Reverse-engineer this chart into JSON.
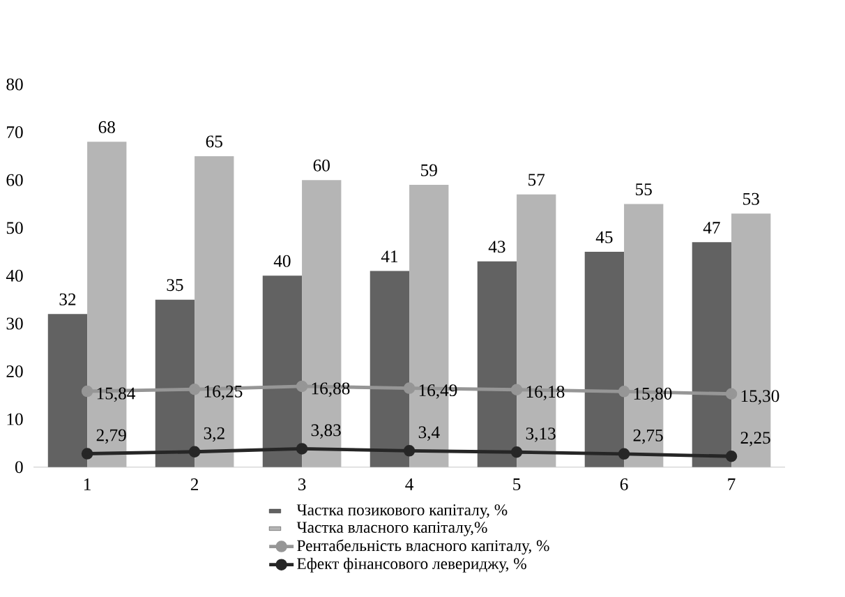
{
  "chart_data": {
    "type": "bar",
    "categories": [
      "1",
      "2",
      "3",
      "4",
      "5",
      "6",
      "7"
    ],
    "series": [
      {
        "name": "Частка позикового капіталу, %",
        "color": "#626262",
        "values": [
          32,
          35,
          40,
          41,
          43,
          45,
          47
        ],
        "value_labels": [
          "32",
          "35",
          "40",
          "41",
          "43",
          "45",
          "47"
        ]
      },
      {
        "name": "Частка власного капіталу,%",
        "color": "#b5b5b5",
        "values": [
          68,
          65,
          60,
          59,
          57,
          55,
          53
        ],
        "value_labels": [
          "68",
          "65",
          "60",
          "59",
          "57",
          "55",
          "53"
        ]
      },
      {
        "name": "Рентабельність власного капіталу, %",
        "type": "line",
        "color": "#969696",
        "values": [
          15.84,
          16.25,
          16.88,
          16.49,
          16.18,
          15.8,
          15.3
        ],
        "value_labels": [
          "15,84",
          "16,25",
          "16,88",
          "16,49",
          "16,18",
          "15,80",
          "15,30"
        ]
      },
      {
        "name": "Ефект фінансового левериджу, %",
        "type": "line",
        "color": "#262626",
        "values": [
          2.79,
          3.2,
          3.83,
          3.4,
          3.13,
          2.75,
          2.25
        ],
        "value_labels": [
          "2,79",
          "3,2",
          "3,83",
          "3,4",
          "3,13",
          "2,75",
          "2,25"
        ]
      }
    ],
    "ylim": [
      0,
      80
    ],
    "yticks": [
      0,
      10,
      20,
      30,
      40,
      50,
      60,
      70,
      80
    ],
    "grid": false,
    "legend": "bottom",
    "marker": "circle",
    "line_style": "solid"
  }
}
